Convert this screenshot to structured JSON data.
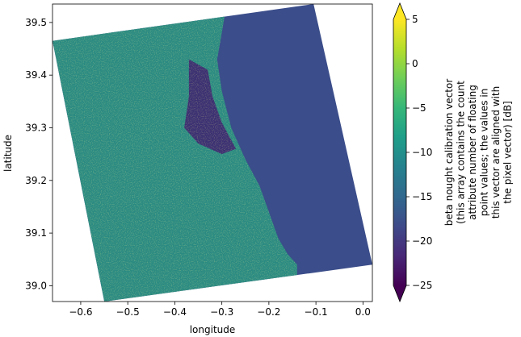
{
  "chart_data": {
    "type": "heatmap",
    "title": "",
    "xlabel": "longitude",
    "ylabel": "latitude",
    "xlim": [
      -0.66,
      0.02
    ],
    "ylim": [
      38.97,
      39.535
    ],
    "x_ticks": [
      {
        "value": -0.6,
        "label": "−0.6"
      },
      {
        "value": -0.5,
        "label": "−0.5"
      },
      {
        "value": -0.4,
        "label": "−0.4"
      },
      {
        "value": -0.3,
        "label": "−0.3"
      },
      {
        "value": -0.2,
        "label": "−0.2"
      },
      {
        "value": -0.1,
        "label": "−0.1"
      },
      {
        "value": 0.0,
        "label": "0.0"
      }
    ],
    "y_ticks": [
      {
        "value": 39.0,
        "label": "39.0"
      },
      {
        "value": 39.1,
        "label": "39.1"
      },
      {
        "value": 39.2,
        "label": "39.2"
      },
      {
        "value": 39.3,
        "label": "39.3"
      },
      {
        "value": 39.4,
        "label": "39.4"
      },
      {
        "value": 39.5,
        "label": "39.5"
      }
    ],
    "swath_corners": [
      [
        -0.66,
        39.465
      ],
      [
        -0.105,
        39.535
      ],
      [
        0.02,
        39.04
      ],
      [
        -0.55,
        38.97
      ]
    ],
    "coastline": [
      [
        -0.29,
        39.535
      ],
      [
        -0.3,
        39.48
      ],
      [
        -0.31,
        39.43
      ],
      [
        -0.3,
        39.37
      ],
      [
        -0.28,
        39.3
      ],
      [
        -0.25,
        39.24
      ],
      [
        -0.22,
        39.19
      ],
      [
        -0.2,
        39.14
      ],
      [
        -0.18,
        39.09
      ],
      [
        -0.16,
        39.06
      ],
      [
        -0.14,
        39.04
      ]
    ],
    "lagoon": [
      [
        -0.37,
        39.43
      ],
      [
        -0.33,
        39.41
      ],
      [
        -0.32,
        39.36
      ],
      [
        -0.3,
        39.31
      ],
      [
        -0.27,
        39.26
      ],
      [
        -0.3,
        39.25
      ],
      [
        -0.35,
        39.27
      ],
      [
        -0.38,
        39.3
      ],
      [
        -0.37,
        39.36
      ]
    ],
    "colorbar": {
      "colormap": "viridis",
      "vmin": -25,
      "vmax": 5,
      "extend": "both",
      "ticks": [
        {
          "value": 5,
          "label": "5"
        },
        {
          "value": 0,
          "label": "0"
        },
        {
          "value": -5,
          "label": "−5"
        },
        {
          "value": -10,
          "label": "−10"
        },
        {
          "value": -15,
          "label": "−15"
        },
        {
          "value": -20,
          "label": "−20"
        },
        {
          "value": -25,
          "label": "−25"
        }
      ],
      "label_lines": [
        "beta nought calibration vector",
        "(this array contains the count",
        "attribute number of floating",
        "point values; the values in",
        "this vector are aligned with",
        "the pixel vector) [dB]"
      ]
    },
    "colors": {
      "viridis": [
        "#440154",
        "#482878",
        "#3e4a89",
        "#31688e",
        "#26828e",
        "#1f9e89",
        "#35b779",
        "#6ece58",
        "#b5de2b",
        "#fde725"
      ],
      "land": "#2a8a82",
      "sea": "#3b4d8a",
      "lagoon": "#3a2f72",
      "bright": "#d9e43a"
    }
  }
}
